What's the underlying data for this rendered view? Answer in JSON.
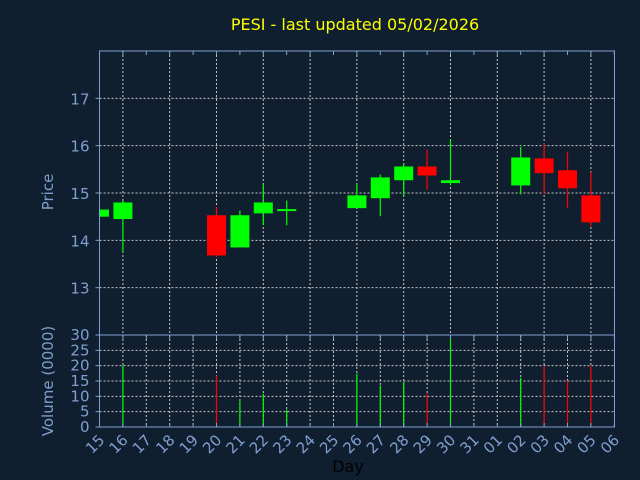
{
  "chart_data": {
    "type": "candlestick",
    "title": "PESI - last updated 05/02/2026",
    "xlabel": "Day",
    "ylabel": "Price",
    "volume_ylabel": "Volume (0000)",
    "x_ticks": [
      "15",
      "16",
      "17",
      "18",
      "19",
      "20",
      "21",
      "22",
      "23",
      "24",
      "25",
      "26",
      "27",
      "28",
      "29",
      "30",
      "31",
      "01",
      "02",
      "03",
      "04",
      "05",
      "06"
    ],
    "price_ylim": [
      12.0,
      18.0
    ],
    "price_ticks": [
      13,
      14,
      15,
      16,
      17
    ],
    "volume_ylim": [
      0,
      30
    ],
    "volume_ticks": [
      0,
      5,
      10,
      15,
      20,
      25,
      30
    ],
    "grid": true,
    "up_color": "#00ff00",
    "down_color": "#ff0000",
    "title_color": "#ffff00",
    "candles": [
      {
        "day": "15",
        "open": 14.5,
        "high": 14.65,
        "low": 14.5,
        "close": 14.65,
        "volume": 0
      },
      {
        "day": "16",
        "open": 14.45,
        "high": 14.84,
        "low": 13.74,
        "close": 14.8,
        "volume": 20.0
      },
      {
        "day": "20",
        "open": 14.53,
        "high": 14.7,
        "low": 13.64,
        "close": 13.68,
        "volume": 16.8
      },
      {
        "day": "21",
        "open": 13.85,
        "high": 14.63,
        "low": 13.85,
        "close": 14.53,
        "volume": 8.4
      },
      {
        "day": "22",
        "open": 14.57,
        "high": 15.18,
        "low": 14.32,
        "close": 14.8,
        "volume": 10.8
      },
      {
        "day": "23",
        "open": 14.64,
        "high": 14.84,
        "low": 14.32,
        "close": 14.66,
        "volume": 5.7
      },
      {
        "day": "26",
        "open": 14.68,
        "high": 15.18,
        "low": 14.68,
        "close": 14.95,
        "volume": 17.4
      },
      {
        "day": "27",
        "open": 14.89,
        "high": 15.39,
        "low": 14.51,
        "close": 15.33,
        "volume": 13.5
      },
      {
        "day": "28",
        "open": 15.27,
        "high": 15.63,
        "low": 14.93,
        "close": 15.56,
        "volume": 14.7
      },
      {
        "day": "29",
        "open": 15.56,
        "high": 15.92,
        "low": 15.07,
        "close": 15.37,
        "volume": 10.9
      },
      {
        "day": "30",
        "open": 15.21,
        "high": 16.14,
        "low": 15.16,
        "close": 15.27,
        "volume": 29.1
      },
      {
        "day": "02",
        "open": 15.16,
        "high": 15.97,
        "low": 14.97,
        "close": 15.75,
        "volume": 16.0
      },
      {
        "day": "03",
        "open": 15.73,
        "high": 16.05,
        "low": 14.98,
        "close": 15.42,
        "volume": 19.8
      },
      {
        "day": "04",
        "open": 15.48,
        "high": 15.87,
        "low": 14.68,
        "close": 15.1,
        "volume": 15.1
      },
      {
        "day": "05",
        "open": 14.95,
        "high": 15.44,
        "low": 14.3,
        "close": 14.38,
        "volume": 19.8
      }
    ]
  }
}
